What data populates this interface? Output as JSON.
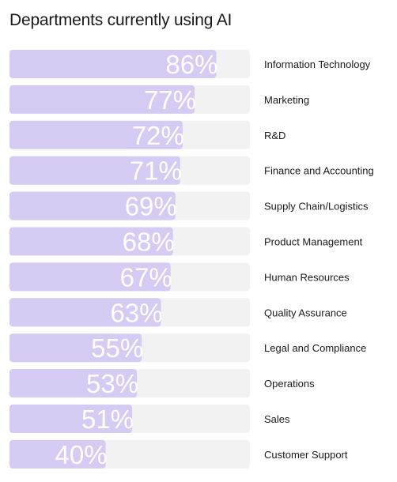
{
  "chart_data": {
    "type": "bar",
    "orientation": "horizontal",
    "title": "Departments currently using AI",
    "categories": [
      "Information Technology",
      "Marketing",
      "R&D",
      "Finance and Accounting",
      "Supply Chain/Logistics",
      "Product Management",
      "Human Resources",
      "Quality Assurance",
      "Legal and Compliance",
      "Operations",
      "Sales",
      "Customer Support"
    ],
    "values": [
      86,
      77,
      72,
      71,
      69,
      68,
      67,
      63,
      55,
      53,
      51,
      40
    ],
    "value_suffix": "%",
    "xlim": [
      0,
      100
    ],
    "grid": false,
    "legend": "none",
    "colors": {
      "bar": "#d5cbf3",
      "track": "#f1f2f1",
      "value_text": "#ffffff"
    }
  }
}
